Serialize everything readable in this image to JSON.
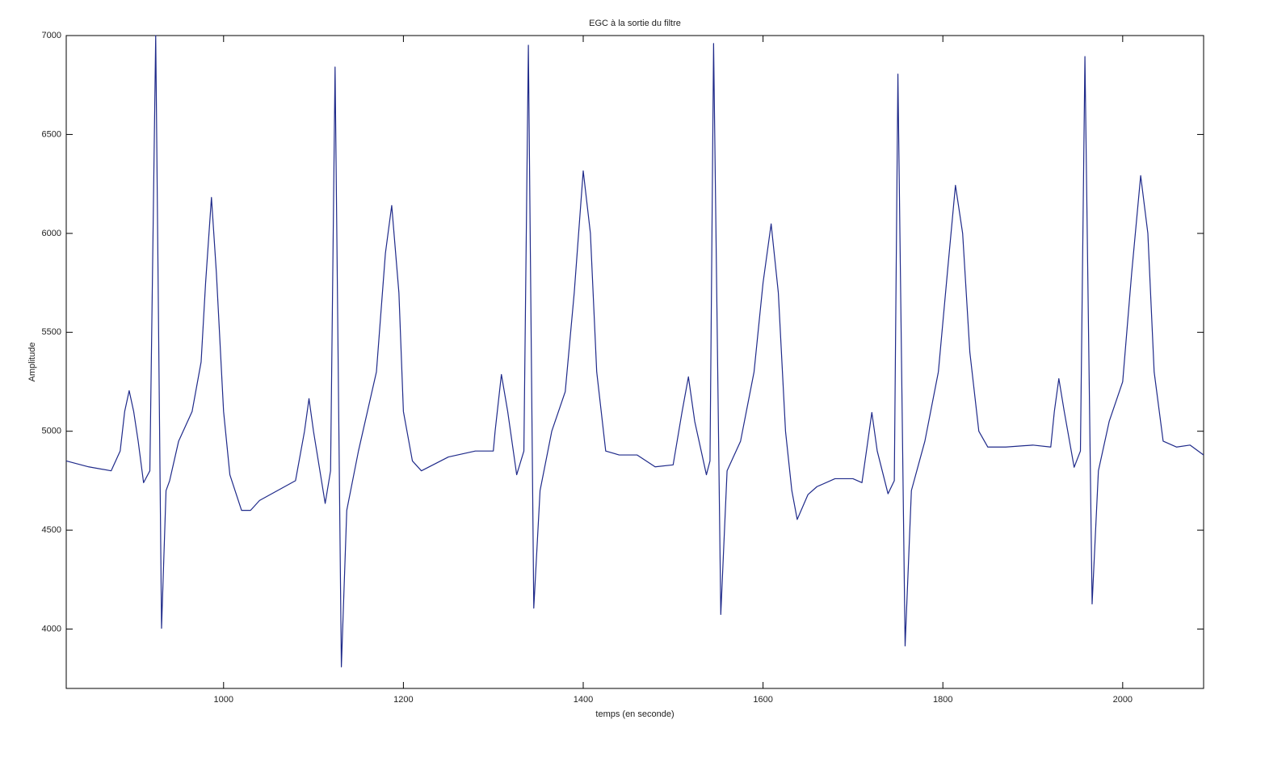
{
  "chart_data": {
    "type": "line",
    "title": "EGC à la sortie du filtre",
    "x_label": "temps (en seconde)",
    "y_label": "Amplitude",
    "color": "#1f2a8a",
    "x": [
      825,
      850,
      875,
      885,
      890,
      895,
      900,
      905,
      911,
      918,
      924.5,
      931,
      936,
      940,
      950,
      965,
      975,
      980,
      986.5,
      992,
      1000,
      1007,
      1020,
      1030,
      1040,
      1060,
      1080,
      1090,
      1095,
      1100,
      1113,
      1119,
      1124,
      1131,
      1137,
      1150,
      1170,
      1180,
      1187,
      1195,
      1200,
      1210,
      1220,
      1250,
      1280,
      1300,
      1302,
      1309,
      1316,
      1326,
      1334,
      1339,
      1345,
      1352,
      1365,
      1380,
      1390,
      1400,
      1408,
      1415,
      1425,
      1440,
      1460,
      1480,
      1500,
      1510,
      1517,
      1524,
      1537,
      1541,
      1545,
      1553,
      1560,
      1575,
      1590,
      1600,
      1609,
      1617,
      1625,
      1632,
      1638,
      1650,
      1660,
      1680,
      1700,
      1710,
      1715,
      1721,
      1727,
      1739,
      1746,
      1750,
      1758,
      1765,
      1780,
      1795,
      1805,
      1814,
      1822,
      1830,
      1840,
      1850,
      1870,
      1900,
      1920,
      1924,
      1929,
      1935,
      1946,
      1953,
      1958,
      1966,
      1973,
      1985,
      2000,
      2010,
      2020,
      2028,
      2035,
      2045,
      2060,
      2075,
      2090
    ],
    "values": [
      4850,
      4820,
      4800,
      4900,
      5100,
      5205,
      5100,
      4950,
      4740,
      4800,
      7000,
      4004,
      4700,
      4750,
      4950,
      5100,
      5350,
      5750,
      6182,
      5800,
      5100,
      4780,
      4600,
      4600,
      4650,
      4700,
      4750,
      5000,
      5165,
      5000,
      4635,
      4800,
      6841,
      3809,
      4600,
      4900,
      5300,
      5900,
      6141,
      5700,
      5100,
      4850,
      4800,
      4870,
      4900,
      4900,
      5000,
      5287,
      5100,
      4780,
      4900,
      6951,
      4106,
      4700,
      5000,
      5200,
      5700,
      6316,
      6000,
      5300,
      4900,
      4880,
      4880,
      4820,
      4830,
      5100,
      5275,
      5050,
      4780,
      4850,
      6960,
      4074,
      4800,
      4950,
      5300,
      5750,
      6048,
      5700,
      5000,
      4700,
      4554,
      4680,
      4720,
      4760,
      4760,
      4740,
      4900,
      5095,
      4900,
      4684,
      4750,
      6805,
      3915,
      4700,
      4950,
      5300,
      5800,
      6243,
      6000,
      5400,
      5000,
      4920,
      4920,
      4930,
      4920,
      5100,
      5266,
      5100,
      4818,
      4900,
      6894,
      4127,
      4800,
      5050,
      5250,
      5800,
      6292,
      6000,
      5300,
      4950,
      4920,
      4930,
      4880
    ],
    "xlim": [
      825,
      2090
    ],
    "xticks": [
      1000,
      1200,
      1400,
      1600,
      1800,
      2000
    ],
    "ylim": [
      3700,
      7000
    ],
    "yticks": [
      4000,
      4500,
      5000,
      5500,
      6000,
      6500,
      7000
    ]
  }
}
